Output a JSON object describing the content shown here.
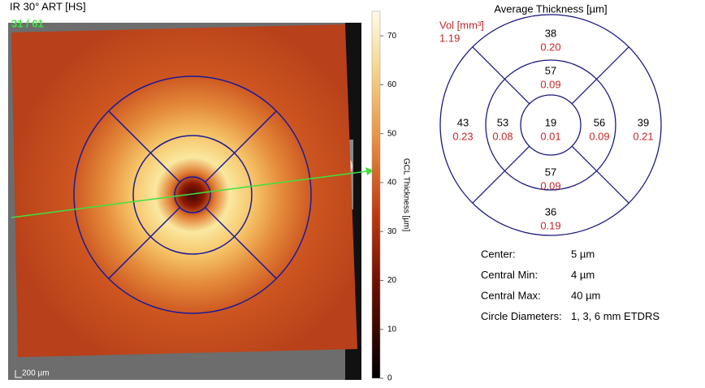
{
  "image": {
    "title": "IR 30° ART [HS]",
    "slice": "31 / 61",
    "scale_bar": "200 µm"
  },
  "colorbar": {
    "label": "GCL Thickness [µm]",
    "lim": [
      0,
      75
    ],
    "ticks": [
      0,
      10,
      20,
      30,
      40,
      50,
      60,
      70
    ]
  },
  "etdrs": {
    "title": "Average Thickness [µm]",
    "volume_label": "Vol [mm³]",
    "total_volume": "1.19",
    "sectors": [
      {
        "thickness": "38",
        "volume": "0.20"
      },
      {
        "thickness": "57",
        "volume": "0.09"
      },
      {
        "thickness": "43",
        "volume": "0.23"
      },
      {
        "thickness": "53",
        "volume": "0.08"
      },
      {
        "thickness": "19",
        "volume": "0.01"
      },
      {
        "thickness": "56",
        "volume": "0.09"
      },
      {
        "thickness": "39",
        "volume": "0.21"
      },
      {
        "thickness": "57",
        "volume": "0.09"
      },
      {
        "thickness": "36",
        "volume": "0.19"
      }
    ]
  },
  "stats": [
    {
      "label": "Center:",
      "value": "5 µm"
    },
    {
      "label": "Central Min:",
      "value": "4 µm"
    },
    {
      "label": "Central Max:",
      "value": "40 µm"
    },
    {
      "label": "Circle Diameters:",
      "value": "1, 3, 6 mm ETDRS"
    }
  ]
}
